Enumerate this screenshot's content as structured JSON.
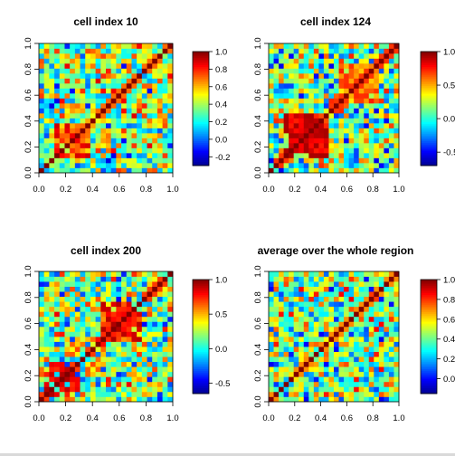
{
  "figure": {
    "colormap": [
      "#00008f",
      "#0000ff",
      "#007fff",
      "#00ffff",
      "#7fff7f",
      "#ffff00",
      "#ff7f00",
      "#ff0000",
      "#7f0000"
    ],
    "frame_color": "#000000",
    "bottom_bar_color": "#d9d9d9"
  },
  "chart_data": [
    {
      "type": "heatmap",
      "title": "cell index 10",
      "grid_size": 26,
      "x_ticks": [
        "0.0",
        "0.2",
        "0.4",
        "0.6",
        "0.8",
        "1.0"
      ],
      "y_ticks": [
        "0.0",
        "0.2",
        "0.4",
        "0.6",
        "0.8",
        "1.0"
      ],
      "xlim": [
        0,
        1
      ],
      "ylim": [
        0,
        1
      ],
      "colorbar": {
        "ticks": [
          "-0.2",
          "0.0",
          "0.2",
          "0.4",
          "0.6",
          "0.8",
          "1.0"
        ],
        "tick_values": [
          -0.2,
          0.0,
          0.2,
          0.4,
          0.6,
          0.8,
          1.0
        ],
        "range": [
          -0.3,
          1.0
        ]
      },
      "value_range": [
        -0.3,
        1.0
      ],
      "diagonal_value": 1.0,
      "seed": 11,
      "hot_blocks": [
        {
          "range": [
            0.1,
            0.4
          ],
          "value": 0.75
        }
      ]
    },
    {
      "type": "heatmap",
      "title": "cell index 124",
      "grid_size": 26,
      "x_ticks": [
        "0.0",
        "0.2",
        "0.4",
        "0.6",
        "0.8",
        "1.0"
      ],
      "y_ticks": [
        "0.0",
        "0.2",
        "0.4",
        "0.6",
        "0.8",
        "1.0"
      ],
      "xlim": [
        0,
        1
      ],
      "ylim": [
        0,
        1
      ],
      "colorbar": {
        "ticks": [
          "-0.5",
          "0.0",
          "0.5",
          "1.0"
        ],
        "tick_values": [
          -0.5,
          0.0,
          0.5,
          1.0
        ],
        "range": [
          -0.7,
          1.0
        ]
      },
      "value_range": [
        -0.7,
        1.0
      ],
      "diagonal_value": 1.0,
      "seed": 37,
      "hot_blocks": [
        {
          "range": [
            0.1,
            0.45
          ],
          "value": 0.85
        },
        {
          "range": [
            0.55,
            0.85
          ],
          "value": 0.6
        }
      ]
    },
    {
      "type": "heatmap",
      "title": "cell index 200",
      "grid_size": 26,
      "x_ticks": [
        "0.0",
        "0.2",
        "0.4",
        "0.6",
        "0.8",
        "1.0"
      ],
      "y_ticks": [
        "0.0",
        "0.2",
        "0.4",
        "0.6",
        "0.8",
        "1.0"
      ],
      "xlim": [
        0,
        1
      ],
      "ylim": [
        0,
        1
      ],
      "colorbar": {
        "ticks": [
          "-0.5",
          "0.0",
          "0.5",
          "1.0"
        ],
        "tick_values": [
          -0.5,
          0.0,
          0.5,
          1.0
        ],
        "range": [
          -0.65,
          1.0
        ]
      },
      "value_range": [
        -0.65,
        1.0
      ],
      "diagonal_value": 1.0,
      "seed": 73,
      "hot_blocks": [
        {
          "range": [
            0.05,
            0.3
          ],
          "value": 0.8
        },
        {
          "range": [
            0.45,
            0.75
          ],
          "value": 0.8
        }
      ]
    },
    {
      "type": "heatmap",
      "title": "average over the whole region",
      "grid_size": 26,
      "x_ticks": [
        "0.0",
        "0.2",
        "0.4",
        "0.6",
        "0.8",
        "1.0"
      ],
      "y_ticks": [
        "0.0",
        "0.2",
        "0.4",
        "0.6",
        "0.8",
        "1.0"
      ],
      "xlim": [
        0,
        1
      ],
      "ylim": [
        0,
        1
      ],
      "colorbar": {
        "ticks": [
          "0.0",
          "0.2",
          "0.4",
          "0.6",
          "0.8",
          "1.0"
        ],
        "tick_values": [
          0.0,
          0.2,
          0.4,
          0.6,
          0.8,
          1.0
        ],
        "range": [
          -0.15,
          1.0
        ]
      },
      "value_range": [
        -0.15,
        1.0
      ],
      "diagonal_value": 1.0,
      "seed": 101,
      "hot_blocks": []
    }
  ]
}
